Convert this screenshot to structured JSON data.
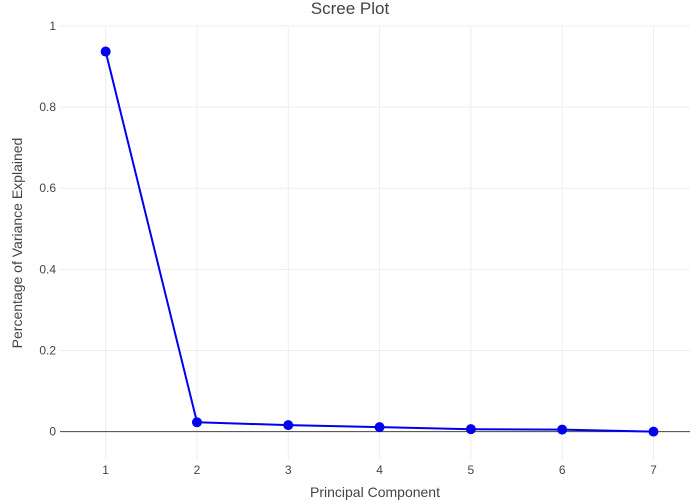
{
  "chart_data": {
    "type": "line",
    "title": "Scree Plot",
    "xlabel": "Principal Component",
    "ylabel": "Percentage of Variance Explained",
    "x": [
      1,
      2,
      3,
      4,
      5,
      6,
      7
    ],
    "series": [
      {
        "values": [
          0.937,
          0.023,
          0.016,
          0.011,
          0.006,
          0.005,
          0.0
        ]
      }
    ],
    "xlim": [
      0.5,
      7.4
    ],
    "ylim": [
      -0.07,
      1.0
    ],
    "xticks": [
      "1",
      "2",
      "3",
      "4",
      "5",
      "6",
      "7"
    ],
    "yticks": [
      "0",
      "0.2",
      "0.4",
      "0.6",
      "0.8",
      "1"
    ],
    "grid": true,
    "colors": {
      "line": "#0000ee",
      "marker": "#0000ee",
      "grid": "#eeeeee",
      "zeroline": "#444444"
    }
  }
}
